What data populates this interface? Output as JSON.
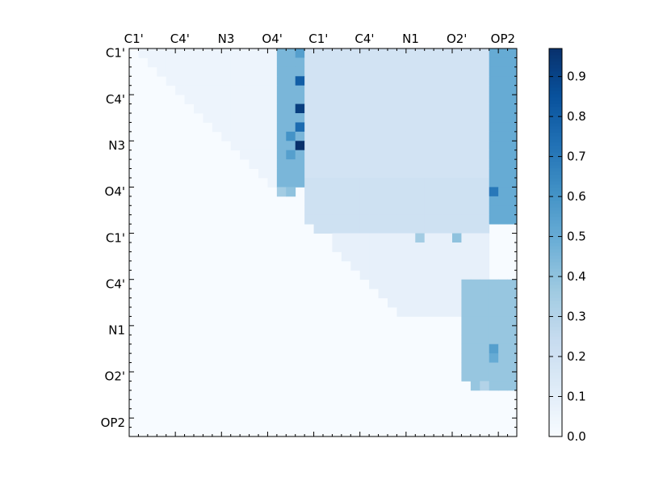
{
  "chart_data": {
    "type": "heatmap",
    "colormap": "Blues",
    "x_tick_labels": [
      "C1'",
      "C4'",
      "N3",
      "O4'",
      "C1'",
      "C4'",
      "N1",
      "O2'",
      "OP2"
    ],
    "y_tick_labels": [
      "C1'",
      "C4'",
      "N3",
      "O4'",
      "C1'",
      "C4'",
      "N1",
      "O2'",
      "OP2"
    ],
    "x_tick_position": "top",
    "colorbar": {
      "ticks": [
        "0.0",
        "0.1",
        "0.2",
        "0.3",
        "0.4",
        "0.5",
        "0.6",
        "0.7",
        "0.8",
        "0.9"
      ],
      "vmin": 0.0,
      "vmax": 0.97
    },
    "grid_size": 42,
    "label_every": 5,
    "upper_triangle_only": true,
    "blocks": [
      {
        "rows": [
          0,
          14
        ],
        "cols": [
          0,
          15
        ],
        "value": 0.05
      },
      {
        "rows": [
          0,
          14
        ],
        "cols": [
          16,
          18
        ],
        "value": 0.45
      },
      {
        "rows": [
          0,
          14
        ],
        "cols": [
          19,
          38
        ],
        "value": 0.18
      },
      {
        "rows": [
          0,
          18
        ],
        "cols": [
          39,
          41
        ],
        "value": 0.5
      },
      {
        "rows": [
          14,
          19
        ],
        "cols": [
          19,
          38
        ],
        "value": 0.2
      },
      {
        "rows": [
          20,
          28
        ],
        "cols": [
          22,
          38
        ],
        "value": 0.08
      },
      {
        "rows": [
          25,
          36
        ],
        "cols": [
          36,
          41
        ],
        "value": 0.38
      }
    ],
    "hotspots": [
      {
        "row": 0,
        "col": 18,
        "value": 0.55
      },
      {
        "row": 3,
        "col": 18,
        "value": 0.8
      },
      {
        "row": 6,
        "col": 18,
        "value": 0.92
      },
      {
        "row": 8,
        "col": 18,
        "value": 0.75
      },
      {
        "row": 10,
        "col": 18,
        "value": 0.97
      },
      {
        "row": 9,
        "col": 17,
        "value": 0.6
      },
      {
        "row": 11,
        "col": 17,
        "value": 0.55
      },
      {
        "row": 15,
        "col": 17,
        "value": 0.4
      },
      {
        "row": 15,
        "col": 16,
        "value": 0.35
      },
      {
        "row": 15,
        "col": 39,
        "value": 0.7
      },
      {
        "row": 20,
        "col": 31,
        "value": 0.35
      },
      {
        "row": 20,
        "col": 35,
        "value": 0.4
      },
      {
        "row": 32,
        "col": 39,
        "value": 0.55
      },
      {
        "row": 33,
        "col": 39,
        "value": 0.5
      },
      {
        "row": 36,
        "col": 38,
        "value": 0.3
      }
    ]
  }
}
